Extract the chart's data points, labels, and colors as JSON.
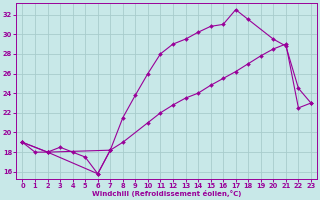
{
  "background_color": "#c8e8e8",
  "grid_color": "#a8cccc",
  "line_color": "#990099",
  "xlabel": "Windchill (Refroidissement éolien,°C)",
  "xlim": [
    -0.5,
    23.5
  ],
  "ylim": [
    15.3,
    33.2
  ],
  "xticks": [
    0,
    1,
    2,
    3,
    4,
    5,
    6,
    7,
    8,
    9,
    10,
    11,
    12,
    13,
    14,
    15,
    16,
    17,
    18,
    19,
    20,
    21,
    22,
    23
  ],
  "yticks": [
    16,
    18,
    20,
    22,
    24,
    26,
    28,
    30,
    32
  ],
  "series": [
    {
      "x": [
        0,
        1,
        2,
        3,
        4,
        5,
        6,
        7
      ],
      "y": [
        19.0,
        18.0,
        18.0,
        18.5,
        18.0,
        17.5,
        15.8,
        18.2
      ]
    },
    {
      "x": [
        0,
        2,
        7,
        8,
        10,
        11,
        12,
        13,
        14,
        15,
        16,
        17,
        18,
        19,
        20,
        21,
        22,
        23
      ],
      "y": [
        19.0,
        18.0,
        18.2,
        19.0,
        21.0,
        22.0,
        22.8,
        23.5,
        24.0,
        24.8,
        25.5,
        26.2,
        27.0,
        27.8,
        28.5,
        29.0,
        22.5,
        23.0
      ]
    },
    {
      "x": [
        0,
        2,
        6,
        7,
        8,
        9,
        10,
        11,
        12,
        13,
        14,
        15,
        16,
        17,
        18,
        20,
        21,
        22,
        23
      ],
      "y": [
        19.0,
        18.0,
        15.8,
        18.2,
        21.5,
        23.8,
        26.0,
        28.0,
        29.0,
        29.5,
        30.2,
        30.8,
        31.0,
        32.5,
        31.5,
        29.5,
        28.8,
        24.5,
        23.0
      ]
    }
  ]
}
